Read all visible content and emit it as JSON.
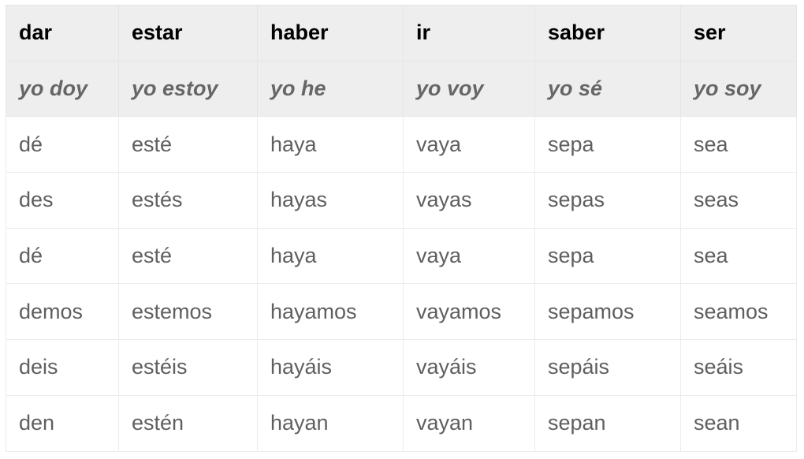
{
  "table": {
    "headers": [
      "dar",
      "estar",
      "haber",
      "ir",
      "saber",
      "ser"
    ],
    "yo_forms": [
      "yo doy",
      "yo estoy",
      "yo he",
      "yo voy",
      "yo sé",
      "yo soy"
    ],
    "rows": [
      [
        "dé",
        "esté",
        "haya",
        "vaya",
        "sepa",
        "sea"
      ],
      [
        "des",
        "estés",
        "hayas",
        "vayas",
        "sepas",
        "seas"
      ],
      [
        "dé",
        "esté",
        "haya",
        "vaya",
        "sepa",
        "sea"
      ],
      [
        "demos",
        "estemos",
        "hayamos",
        "vayamos",
        "sepamos",
        "seamos"
      ],
      [
        "deis",
        "estéis",
        "hayáis",
        "vayáis",
        "sepáis",
        "seáis"
      ],
      [
        "den",
        "estén",
        "hayan",
        "vayan",
        "sepan",
        "sean"
      ]
    ]
  }
}
